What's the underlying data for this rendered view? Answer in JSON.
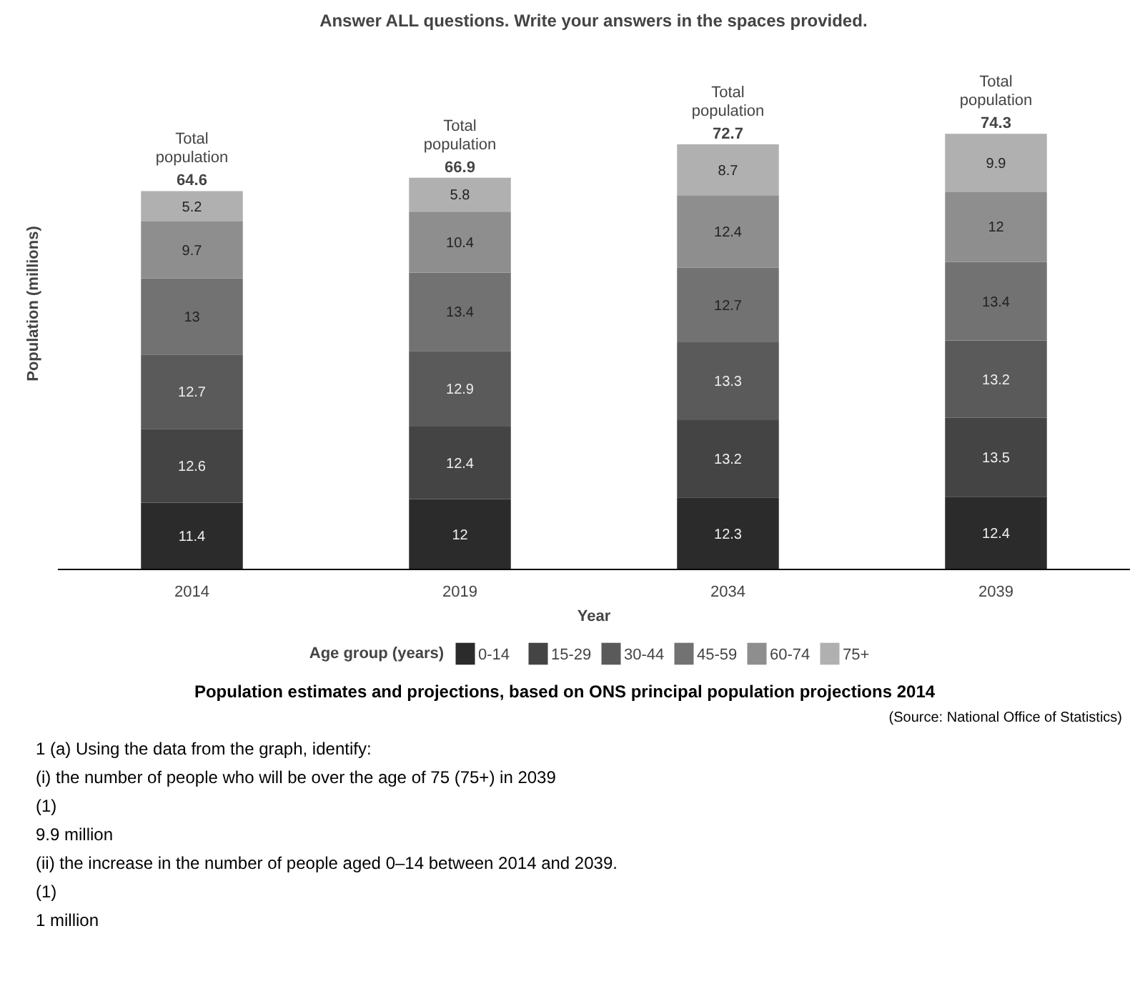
{
  "chart_data": {
    "type": "bar",
    "stacked": true,
    "title": "Answer ALL questions. Write your answers in the spaces provided.",
    "xlabel": "Year",
    "ylabel": "Population (millions)",
    "legend_title": "Age group (years)",
    "legend": "bottom",
    "tick_labels": "x",
    "data_labels": true,
    "categories": [
      "2014",
      "2019",
      "2034",
      "2039"
    ],
    "series": [
      {
        "name": "0-14",
        "color": "#2b2b2b",
        "values": [
          11.4,
          12,
          12.3,
          12.4
        ]
      },
      {
        "name": "15-29",
        "color": "#444444",
        "values": [
          12.6,
          12.4,
          13.2,
          13.5
        ]
      },
      {
        "name": "30-44",
        "color": "#5a5a5a",
        "values": [
          12.7,
          12.9,
          13.3,
          13.2
        ]
      },
      {
        "name": "45-59",
        "color": "#727272",
        "values": [
          13,
          13.4,
          12.7,
          13.4
        ]
      },
      {
        "name": "60-74",
        "color": "#8e8e8e",
        "values": [
          9.7,
          10.4,
          12.4,
          12
        ]
      },
      {
        "name": "75+",
        "color": "#b0b0b0",
        "values": [
          5.2,
          5.8,
          8.7,
          9.9
        ]
      }
    ],
    "totals": [
      "Total\npopulation\n64.6",
      "Total\npopulation\n66.9",
      "Total\npopulation\n72.7",
      "Total\npopulation\n74.3"
    ],
    "annotations": [
      "Population estimates and projections, based on ONS principal population projections 2014",
      "(Source: National Office of Statistics)",
      "1 (a) Using the data from the graph, identify:",
      "(i) the number of people who will be over the age of 75 (75+) in 2039",
      "(1)",
      "9.9 million",
      "(ii) the increase in the number of people aged 0–14 between 2014 and 2039.",
      "(1)",
      "1 million"
    ]
  }
}
